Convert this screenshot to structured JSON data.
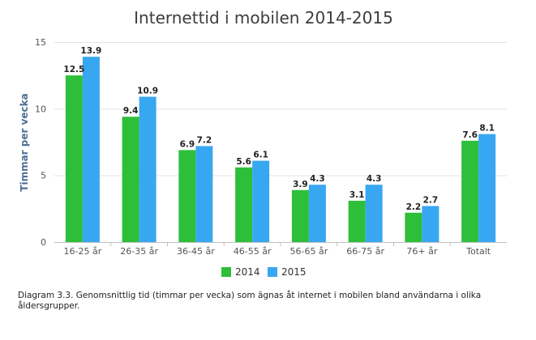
{
  "chart_data": {
    "type": "bar",
    "title": "Internettid i mobilen 2014-2015",
    "ylabel": "Timmar per vecka",
    "xlabel": "",
    "ylim": [
      0,
      15
    ],
    "yticks": [
      "0",
      "5",
      "10",
      "15"
    ],
    "categories": [
      "16-25 år",
      "26-35 år",
      "36-45 år",
      "46-55 år",
      "56-65 år",
      "66-75 år",
      "76+ år",
      "Totalt"
    ],
    "series": [
      {
        "name": "2014",
        "color": "#2dbf3a",
        "values": [
          12.5,
          9.4,
          6.9,
          5.6,
          3.9,
          3.1,
          2.2,
          7.6
        ],
        "labels": [
          "12.5",
          "9.4",
          "6.9",
          "5.6",
          "3.9",
          "3.1",
          "2.2",
          "7.6"
        ]
      },
      {
        "name": "2015",
        "color": "#38a7f2",
        "values": [
          13.9,
          10.9,
          7.2,
          6.1,
          4.3,
          4.3,
          2.7,
          8.1
        ],
        "labels": [
          "13.9",
          "10.9",
          "7.2",
          "6.1",
          "4.3",
          "4.3",
          "2.7",
          "8.1"
        ]
      }
    ],
    "grid": true,
    "legend": "bottom"
  },
  "caption": "Diagram 3.3. Genomsnittlig tid (timmar per vecka) som ägnas åt internet i mobilen bland användarna i olika åldersgrupper."
}
